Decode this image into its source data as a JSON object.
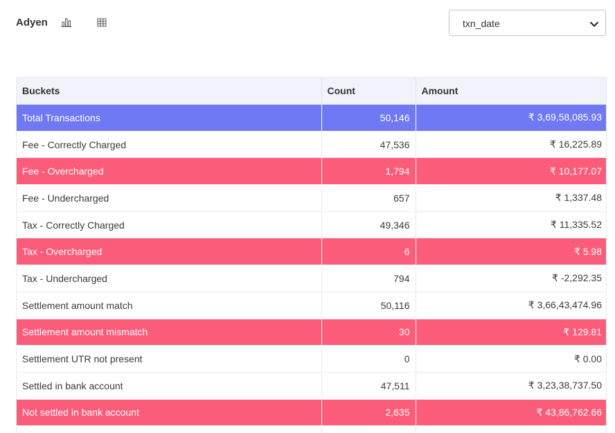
{
  "header": {
    "brand": "Adyen",
    "chart_view_icon": "bar-chart-icon",
    "table_view_icon": "table-grid-icon"
  },
  "date_select": {
    "value": "txn_date",
    "caret_icon": "chevron-down-icon"
  },
  "colors": {
    "total_row": "#7079f4",
    "alert_row": "#fb5c7a",
    "header_bg": "#f0f3fa"
  },
  "table": {
    "columns": [
      "Buckets",
      "Count",
      "Amount"
    ],
    "rows": [
      {
        "bucket": "Total Transactions",
        "count": "50,146",
        "amount": "₹ 3,69,58,085.93",
        "style": "total"
      },
      {
        "bucket": "Fee - Correctly Charged",
        "count": "47,536",
        "amount": "₹ 16,225.89",
        "style": "plain"
      },
      {
        "bucket": "Fee - Overcharged",
        "count": "1,794",
        "amount": "₹ 10,177.07",
        "style": "alert"
      },
      {
        "bucket": "Fee - Undercharged",
        "count": "657",
        "amount": "₹ 1,337.48",
        "style": "plain"
      },
      {
        "bucket": "Tax - Correctly Charged",
        "count": "49,346",
        "amount": "₹ 11,335.52",
        "style": "plain"
      },
      {
        "bucket": "Tax - Overcharged",
        "count": "6",
        "amount": "₹ 5.98",
        "style": "alert"
      },
      {
        "bucket": "Tax - Undercharged",
        "count": "794",
        "amount": "₹ -2,292.35",
        "style": "plain"
      },
      {
        "bucket": "Settlement amount match",
        "count": "50,116",
        "amount": "₹ 3,66,43,474.96",
        "style": "plain"
      },
      {
        "bucket": "Settlement amount mismatch",
        "count": "30",
        "amount": "₹ 129.81",
        "style": "alert"
      },
      {
        "bucket": "Settlement UTR not present",
        "count": "0",
        "amount": "₹ 0.00",
        "style": "plain"
      },
      {
        "bucket": "Settled in bank account",
        "count": "47,511",
        "amount": "₹ 3,23,38,737.50",
        "style": "plain"
      },
      {
        "bucket": "Not settled in bank account",
        "count": "2,635",
        "amount": "₹ 43,86,762.66",
        "style": "alert"
      },
      {
        "bucket": "",
        "count": "",
        "amount": "",
        "style": "plain"
      }
    ]
  }
}
